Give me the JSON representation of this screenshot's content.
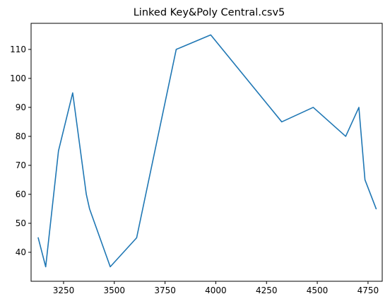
{
  "chart_data": {
    "type": "line",
    "title": "Linked Key&Poly Central.csv5",
    "xlabel": "",
    "ylabel": "",
    "xlim": [
      3090,
      4820
    ],
    "ylim": [
      30,
      119
    ],
    "x_ticks": [
      3250,
      3500,
      3750,
      4000,
      4250,
      4500,
      4750
    ],
    "x_tick_labels": [
      "3250",
      "3500",
      "3750",
      "4000",
      "4250",
      "4500",
      "4750"
    ],
    "y_ticks": [
      40,
      50,
      60,
      70,
      80,
      90,
      100,
      110
    ],
    "y_tick_labels": [
      "40",
      "50",
      "60",
      "70",
      "80",
      "90",
      "100",
      "110"
    ],
    "grid": false,
    "series": [
      {
        "color": "#1f77b4",
        "x": [
          3125,
          3162,
          3225,
          3295,
          3362,
          3378,
          3480,
          3610,
          3805,
          3975,
          4325,
          4480,
          4640,
          4705,
          4735,
          4790
        ],
        "y": [
          45,
          35,
          75,
          95,
          60,
          55,
          35,
          45,
          110,
          115,
          85,
          90,
          80,
          90,
          65,
          55
        ]
      }
    ]
  }
}
